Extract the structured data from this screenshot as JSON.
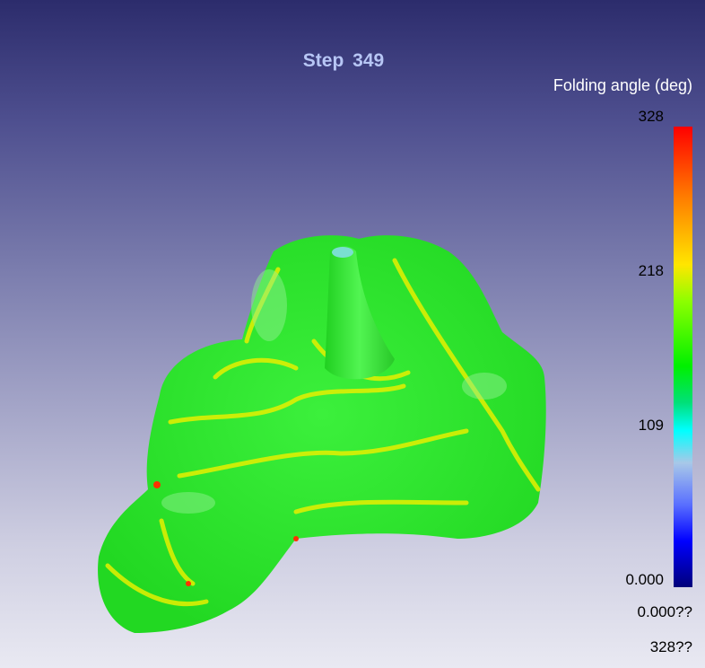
{
  "title": "Step  349",
  "colorbar": {
    "title": "Folding angle (deg)",
    "ticks": [
      "328",
      "218",
      "109",
      "0.000"
    ],
    "range": [
      0,
      328
    ],
    "colormap": [
      "#ff0000",
      "#ff7a00",
      "#ffe600",
      "#00f000",
      "#00ffff",
      "#a8c8e8",
      "#0000ff",
      "#00007a"
    ]
  },
  "footer": {
    "min_label": "0.000??",
    "max_label": "328??"
  },
  "surface_colors": {
    "base": "#1ee81e",
    "ridge": "#e6f000",
    "hot": "#ff3000"
  }
}
